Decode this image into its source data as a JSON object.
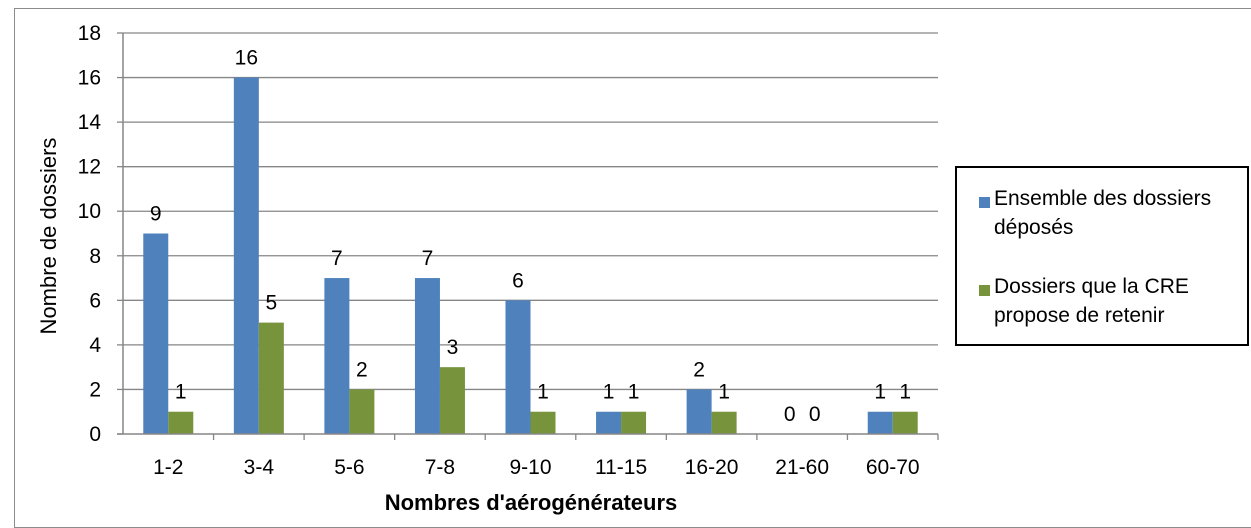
{
  "chart_data": {
    "type": "bar",
    "xlabel": "Nombres d'aérogénérateurs",
    "ylabel": "Nombre de dossiers",
    "ylim": [
      0,
      18
    ],
    "yticks": [
      "0",
      "2",
      "4",
      "6",
      "8",
      "10",
      "12",
      "14",
      "16",
      "18"
    ],
    "categories": [
      "1-2",
      "3-4",
      "5-6",
      "7-8",
      "9-10",
      "11-15",
      "16-20",
      "21-60",
      "60-70"
    ],
    "grid": true,
    "legend_position": "right",
    "series": [
      {
        "name": "Ensemble des dossiers déposés",
        "color": "#4f81bd",
        "values": [
          9,
          16,
          7,
          7,
          6,
          1,
          2,
          0,
          1
        ]
      },
      {
        "name": "Dossiers que la CRE propose de retenir",
        "color": "#77933c",
        "values": [
          1,
          5,
          2,
          3,
          1,
          1,
          1,
          0,
          1
        ]
      }
    ]
  }
}
